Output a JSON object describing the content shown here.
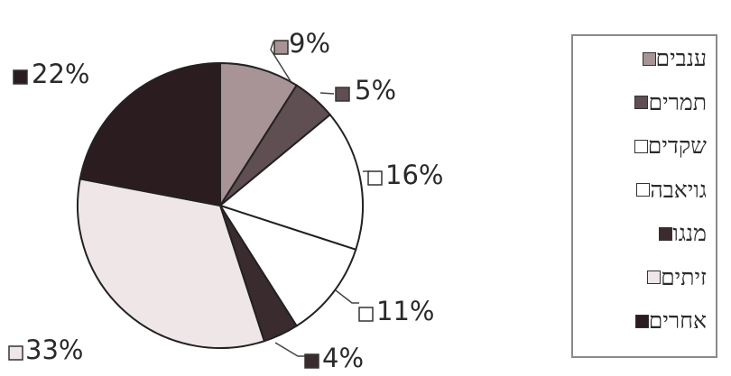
{
  "chart_data": {
    "type": "pie",
    "slices": [
      {
        "name": "ענבים",
        "value": 9,
        "label": "9%",
        "color": "#a89396"
      },
      {
        "name": "תמרים",
        "value": 5,
        "label": "5%",
        "color": "#5f4e52"
      },
      {
        "name": "שקדים",
        "value": 16,
        "label": "16%",
        "color": "#ffffff"
      },
      {
        "name": "גויאבה",
        "value": 11,
        "label": "11%",
        "color": "#ffffff"
      },
      {
        "name": "מנגו",
        "value": 4,
        "label": "4%",
        "color": "#3a2b2e"
      },
      {
        "name": "זיתים",
        "value": 33,
        "label": "33%",
        "color": "#efe6e8"
      },
      {
        "name": "אחרים",
        "value": 22,
        "label": "22%",
        "color": "#2b1c20"
      }
    ],
    "legend_position": "right"
  }
}
